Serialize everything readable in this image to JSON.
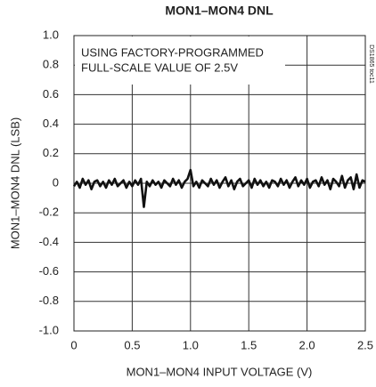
{
  "chart_data": {
    "type": "line",
    "title": "MON1–MON4 DNL",
    "xlabel": "MON1–MON4 INPUT VOLTAGE (V)",
    "ylabel": "MON1–MON4 DNL (LSB)",
    "annotation": [
      "USING FACTORY-PROGRAMMED",
      "FULL-SCALE VALUE OF 2.5V"
    ],
    "side_note": "DS1865 toc11",
    "color": "#111111",
    "grid": true,
    "xlim": [
      0,
      2.5
    ],
    "ylim": [
      -1,
      1
    ],
    "xticks": [
      0,
      0.5,
      {
        "value": 1,
        "label": "1.0"
      },
      1.5,
      {
        "value": 2,
        "label": "2.0"
      },
      2.5
    ],
    "yticks": [
      {
        "value": 1,
        "label": "1.0"
      },
      0.8,
      0.6,
      0.4,
      0.2,
      0,
      -0.2,
      -0.4,
      -0.6,
      -0.8,
      {
        "value": -1,
        "label": "-1.0"
      }
    ],
    "x": [
      0,
      0.025,
      0.05,
      0.075,
      0.1,
      0.125,
      0.15,
      0.175,
      0.2,
      0.225,
      0.25,
      0.275,
      0.3,
      0.325,
      0.35,
      0.375,
      0.4,
      0.425,
      0.45,
      0.475,
      0.5,
      0.525,
      0.55,
      0.575,
      0.6,
      0.625,
      0.65,
      0.675,
      0.7,
      0.725,
      0.75,
      0.775,
      0.8,
      0.825,
      0.85,
      0.875,
      0.9,
      0.925,
      0.95,
      0.975,
      1,
      1.025,
      1.05,
      1.075,
      1.1,
      1.125,
      1.15,
      1.175,
      1.2,
      1.225,
      1.25,
      1.275,
      1.3,
      1.325,
      1.35,
      1.375,
      1.4,
      1.425,
      1.45,
      1.475,
      1.5,
      1.525,
      1.55,
      1.575,
      1.6,
      1.625,
      1.65,
      1.675,
      1.7,
      1.725,
      1.75,
      1.775,
      1.8,
      1.825,
      1.85,
      1.875,
      1.9,
      1.925,
      1.95,
      1.975,
      2,
      2.025,
      2.05,
      2.075,
      2.1,
      2.125,
      2.15,
      2.175,
      2.2,
      2.225,
      2.25,
      2.275,
      2.3,
      2.325,
      2.35,
      2.375,
      2.4,
      2.425,
      2.45,
      2.475,
      2.5
    ],
    "values": [
      -0.02,
      0.01,
      -0.03,
      0.03,
      -0.01,
      0.02,
      -0.04,
      0.01,
      0.02,
      -0.02,
      0.01,
      -0.03,
      0.02,
      -0.01,
      0.03,
      -0.02,
      0,
      0.02,
      -0.03,
      0.01,
      -0.02,
      0.02,
      -0.01,
      0.03,
      -0.16,
      0.01,
      -0.02,
      0.02,
      -0.01,
      0.01,
      -0.03,
      0.02,
      0,
      -0.02,
      0.03,
      -0.01,
      0.02,
      -0.03,
      0.01,
      0.03,
      0.09,
      -0.02,
      0.01,
      -0.03,
      0.02,
      0,
      -0.02,
      0.03,
      -0.01,
      0.02,
      -0.03,
      0.01,
      0.04,
      -0.02,
      0.02,
      -0.04,
      0.01,
      0.03,
      -0.02,
      0,
      0.02,
      -0.03,
      0.03,
      -0.01,
      0.02,
      -0.02,
      0.01,
      -0.03,
      0.02,
      0.01,
      -0.02,
      0.03,
      -0.01,
      0.02,
      -0.03,
      0.01,
      0.04,
      -0.02,
      0.02,
      -0.01,
      0.03,
      -0.03,
      0.01,
      0.02,
      -0.02,
      0.04,
      -0.01,
      0.02,
      -0.04,
      0.03,
      0.01,
      -0.02,
      0.05,
      -0.03,
      0.02,
      0.04,
      -0.04,
      0.06,
      -0.03,
      0.02,
      0.01
    ]
  }
}
